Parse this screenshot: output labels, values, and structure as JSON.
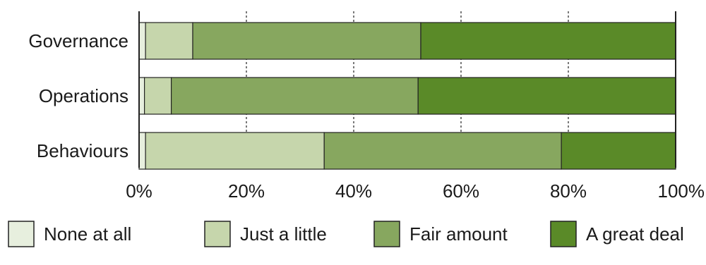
{
  "chart_data": {
    "type": "bar",
    "orientation": "horizontal",
    "stacked": true,
    "categories": [
      "Governance",
      "Operations",
      "Behaviours"
    ],
    "series": [
      {
        "name": "None at all",
        "color": "#e7efde",
        "values": [
          1.2,
          1.0,
          1.2
        ]
      },
      {
        "name": "Just a little",
        "color": "#c6d6ac",
        "values": [
          8.8,
          5.0,
          33.3
        ]
      },
      {
        "name": "Fair amount",
        "color": "#87a75f",
        "values": [
          42.5,
          46.0,
          44.2
        ]
      },
      {
        "name": "A great deal",
        "color": "#5a8a28",
        "values": [
          47.5,
          48.0,
          21.3
        ]
      }
    ],
    "xlim": [
      0,
      100
    ],
    "xticks": [
      "0%",
      "20%",
      "40%",
      "60%",
      "80%",
      "100%"
    ],
    "grid": "vertical-dashed",
    "legend_position": "bottom"
  }
}
